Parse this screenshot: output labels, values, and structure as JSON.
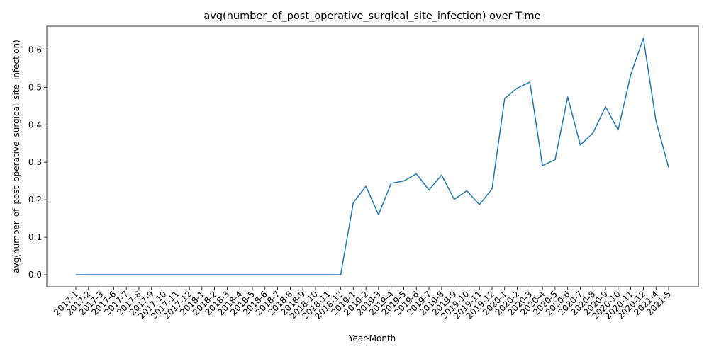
{
  "chart_data": {
    "type": "line",
    "title": "avg(number_of_post_operative_surgical_site_infection) over Time",
    "xlabel": "Year-Month",
    "ylabel": "avg(number_of_post_operative_surgical_site_infection)",
    "ylim": [
      -0.032,
      0.663
    ],
    "yticks": [
      0.0,
      0.1,
      0.2,
      0.3,
      0.4,
      0.5,
      0.6
    ],
    "ytick_labels": [
      "0.0",
      "0.1",
      "0.2",
      "0.3",
      "0.4",
      "0.5",
      "0.6"
    ],
    "grid": false,
    "line_color": "#1f77b4",
    "categories": [
      "2017-1",
      "2017-2",
      "2017-3",
      "2017-6",
      "2017-7",
      "2017-8",
      "2017-9",
      "2017-10",
      "2017-11",
      "2017-12",
      "2018-1",
      "2018-2",
      "2018-3",
      "2018-4",
      "2018-5",
      "2018-6",
      "2018-7",
      "2018-8",
      "2018-9",
      "2018-10",
      "2018-11",
      "2018-12",
      "2019-1",
      "2019-2",
      "2019-3",
      "2019-4",
      "2019-5",
      "2019-6",
      "2019-7",
      "2019-8",
      "2019-9",
      "2019-10",
      "2019-11",
      "2019-12",
      "2020-1",
      "2020-2",
      "2020-3",
      "2020-4",
      "2020-5",
      "2020-6",
      "2020-7",
      "2020-8",
      "2020-9",
      "2020-10",
      "2020-11",
      "2020-12",
      "2021-4",
      "2021-5"
    ],
    "values": [
      0,
      0,
      0,
      0,
      0,
      0,
      0,
      0,
      0,
      0,
      0,
      0,
      0,
      0,
      0,
      0,
      0,
      0,
      0,
      0,
      0,
      0,
      0.192,
      0.236,
      0.16,
      0.244,
      0.25,
      0.269,
      0.226,
      0.266,
      0.201,
      0.224,
      0.187,
      0.229,
      0.47,
      0.498,
      0.514,
      0.291,
      0.307,
      0.474,
      0.346,
      0.378,
      0.448,
      0.386,
      0.534,
      0.631,
      0.41,
      0.286
    ]
  }
}
